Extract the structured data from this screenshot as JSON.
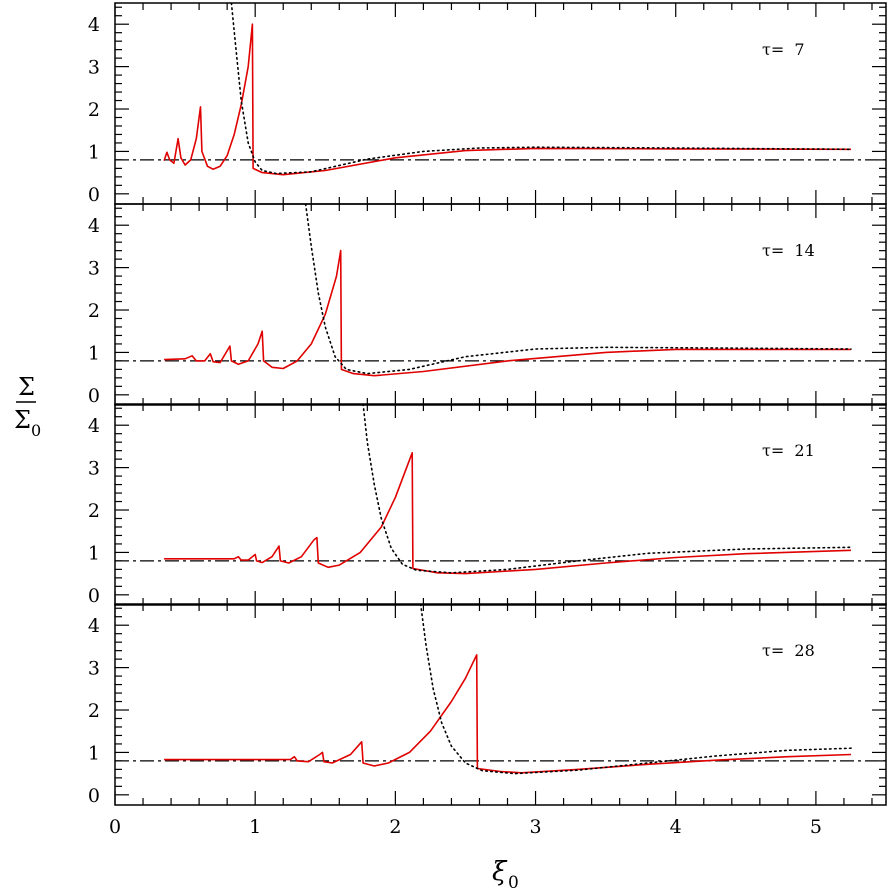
{
  "chart_data": {
    "type": "line",
    "xlabel": "ξ",
    "xlabel_sub": "0",
    "ylabel_num": "Σ",
    "ylabel_den": "Σ",
    "ylabel_den_sub": "0",
    "xlim": [
      0,
      5.5
    ],
    "ylim": [
      -0.24,
      4.5
    ],
    "xticks": [
      0,
      1,
      2,
      3,
      4,
      5
    ],
    "yticks": [
      0,
      1,
      2,
      3,
      4
    ],
    "colors": {
      "solid": "#e00000",
      "dotted": "#000000",
      "dashdot": "#000000"
    },
    "reference_level": 0.8,
    "panels": [
      {
        "label": "τ=  7",
        "series": [
          {
            "name": "solid",
            "points": [
              [
                0.35,
                0.78
              ],
              [
                0.37,
                0.98
              ],
              [
                0.39,
                0.8
              ],
              [
                0.42,
                0.72
              ],
              [
                0.45,
                1.3
              ],
              [
                0.47,
                0.85
              ],
              [
                0.5,
                0.68
              ],
              [
                0.54,
                0.8
              ],
              [
                0.58,
                1.3
              ],
              [
                0.61,
                2.05
              ],
              [
                0.62,
                1.0
              ],
              [
                0.66,
                0.65
              ],
              [
                0.7,
                0.58
              ],
              [
                0.75,
                0.65
              ],
              [
                0.8,
                0.9
              ],
              [
                0.85,
                1.4
              ],
              [
                0.9,
                2.1
              ],
              [
                0.95,
                3.0
              ],
              [
                0.98,
                4.0
              ],
              [
                0.985,
                0.6
              ],
              [
                1.05,
                0.5
              ],
              [
                1.2,
                0.45
              ],
              [
                1.5,
                0.55
              ],
              [
                2.0,
                0.85
              ],
              [
                2.5,
                1.02
              ],
              [
                3.0,
                1.07
              ],
              [
                4.0,
                1.06
              ],
              [
                5.25,
                1.05
              ]
            ]
          },
          {
            "name": "dotted",
            "points": [
              [
                0.83,
                4.5
              ],
              [
                0.86,
                3.5
              ],
              [
                0.9,
                2.2
              ],
              [
                0.95,
                1.2
              ],
              [
                1.0,
                0.75
              ],
              [
                1.05,
                0.55
              ],
              [
                1.15,
                0.48
              ],
              [
                1.4,
                0.52
              ],
              [
                1.8,
                0.82
              ],
              [
                2.2,
                1.0
              ],
              [
                2.6,
                1.08
              ],
              [
                3.0,
                1.1
              ],
              [
                4.0,
                1.08
              ],
              [
                5.25,
                1.05
              ]
            ]
          }
        ]
      },
      {
        "label": "τ=  14",
        "series": [
          {
            "name": "solid",
            "points": [
              [
                0.35,
                0.83
              ],
              [
                0.5,
                0.85
              ],
              [
                0.55,
                0.92
              ],
              [
                0.58,
                0.8
              ],
              [
                0.64,
                0.8
              ],
              [
                0.68,
                0.97
              ],
              [
                0.7,
                0.78
              ],
              [
                0.75,
                0.76
              ],
              [
                0.82,
                1.15
              ],
              [
                0.83,
                0.8
              ],
              [
                0.88,
                0.72
              ],
              [
                0.95,
                0.8
              ],
              [
                1.02,
                1.2
              ],
              [
                1.05,
                1.5
              ],
              [
                1.06,
                0.8
              ],
              [
                1.12,
                0.65
              ],
              [
                1.2,
                0.62
              ],
              [
                1.3,
                0.8
              ],
              [
                1.4,
                1.2
              ],
              [
                1.5,
                1.9
              ],
              [
                1.58,
                2.8
              ],
              [
                1.61,
                3.4
              ],
              [
                1.615,
                0.6
              ],
              [
                1.7,
                0.5
              ],
              [
                1.85,
                0.45
              ],
              [
                2.2,
                0.55
              ],
              [
                2.8,
                0.8
              ],
              [
                3.5,
                1.0
              ],
              [
                4.0,
                1.07
              ],
              [
                5.25,
                1.07
              ]
            ]
          },
          {
            "name": "dotted",
            "points": [
              [
                1.36,
                4.5
              ],
              [
                1.4,
                3.5
              ],
              [
                1.45,
                2.4
              ],
              [
                1.5,
                1.6
              ],
              [
                1.57,
                0.9
              ],
              [
                1.65,
                0.6
              ],
              [
                1.8,
                0.5
              ],
              [
                2.1,
                0.6
              ],
              [
                2.5,
                0.9
              ],
              [
                3.0,
                1.08
              ],
              [
                3.5,
                1.12
              ],
              [
                4.5,
                1.1
              ],
              [
                5.25,
                1.08
              ]
            ]
          }
        ]
      },
      {
        "label": "τ=  21",
        "series": [
          {
            "name": "solid",
            "points": [
              [
                0.35,
                0.85
              ],
              [
                0.85,
                0.85
              ],
              [
                0.88,
                0.9
              ],
              [
                0.9,
                0.82
              ],
              [
                0.95,
                0.82
              ],
              [
                1.0,
                0.95
              ],
              [
                1.01,
                0.8
              ],
              [
                1.05,
                0.76
              ],
              [
                1.12,
                0.9
              ],
              [
                1.17,
                1.15
              ],
              [
                1.18,
                0.8
              ],
              [
                1.24,
                0.75
              ],
              [
                1.33,
                0.9
              ],
              [
                1.42,
                1.3
              ],
              [
                1.44,
                1.35
              ],
              [
                1.45,
                0.75
              ],
              [
                1.52,
                0.65
              ],
              [
                1.6,
                0.7
              ],
              [
                1.75,
                1.0
              ],
              [
                1.9,
                1.6
              ],
              [
                2.0,
                2.3
              ],
              [
                2.12,
                3.35
              ],
              [
                2.125,
                0.62
              ],
              [
                2.3,
                0.52
              ],
              [
                2.5,
                0.5
              ],
              [
                3.0,
                0.6
              ],
              [
                3.5,
                0.75
              ],
              [
                4.0,
                0.88
              ],
              [
                4.5,
                0.97
              ],
              [
                5.25,
                1.05
              ]
            ]
          },
          {
            "name": "dotted",
            "points": [
              [
                1.77,
                4.5
              ],
              [
                1.8,
                3.6
              ],
              [
                1.85,
                2.6
              ],
              [
                1.9,
                1.8
              ],
              [
                1.97,
                1.1
              ],
              [
                2.05,
                0.72
              ],
              [
                2.15,
                0.58
              ],
              [
                2.4,
                0.52
              ],
              [
                2.8,
                0.6
              ],
              [
                3.3,
                0.8
              ],
              [
                3.8,
                0.98
              ],
              [
                4.5,
                1.08
              ],
              [
                5.25,
                1.12
              ]
            ]
          }
        ]
      },
      {
        "label": "τ=  28",
        "series": [
          {
            "name": "solid",
            "points": [
              [
                0.35,
                0.83
              ],
              [
                1.25,
                0.83
              ],
              [
                1.28,
                0.9
              ],
              [
                1.3,
                0.8
              ],
              [
                1.38,
                0.78
              ],
              [
                1.46,
                0.95
              ],
              [
                1.48,
                1.0
              ],
              [
                1.49,
                0.78
              ],
              [
                1.55,
                0.75
              ],
              [
                1.68,
                0.95
              ],
              [
                1.76,
                1.25
              ],
              [
                1.77,
                0.75
              ],
              [
                1.85,
                0.68
              ],
              [
                1.95,
                0.75
              ],
              [
                2.1,
                1.0
              ],
              [
                2.25,
                1.5
              ],
              [
                2.4,
                2.2
              ],
              [
                2.5,
                2.75
              ],
              [
                2.58,
                3.3
              ],
              [
                2.585,
                0.62
              ],
              [
                2.75,
                0.55
              ],
              [
                2.9,
                0.52
              ],
              [
                3.3,
                0.6
              ],
              [
                3.8,
                0.72
              ],
              [
                4.3,
                0.82
              ],
              [
                4.8,
                0.9
              ],
              [
                5.25,
                0.95
              ]
            ]
          },
          {
            "name": "dotted",
            "points": [
              [
                2.18,
                4.5
              ],
              [
                2.22,
                3.5
              ],
              [
                2.27,
                2.5
              ],
              [
                2.33,
                1.7
              ],
              [
                2.4,
                1.15
              ],
              [
                2.5,
                0.75
              ],
              [
                2.62,
                0.57
              ],
              [
                2.85,
                0.5
              ],
              [
                3.3,
                0.58
              ],
              [
                3.8,
                0.75
              ],
              [
                4.3,
                0.92
              ],
              [
                4.8,
                1.05
              ],
              [
                5.25,
                1.1
              ]
            ]
          }
        ]
      }
    ]
  }
}
